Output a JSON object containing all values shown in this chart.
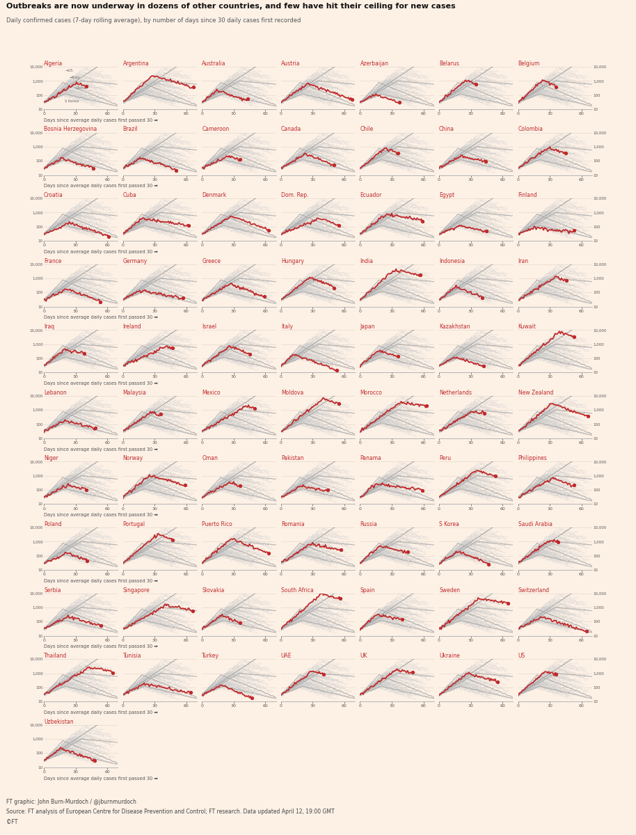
{
  "title": "Outbreaks are now underway in dozens of other countries, and few have hit their ceiling for new cases",
  "subtitle": "Daily confirmed cases (7-day rolling average), by number of days since 30 daily cases first recorded",
  "footer_line1": "FT graphic: John Burn-Murdoch / @jburnmurdoch",
  "footer_line2": "Source: FT analysis of European Centre for Disease Prevention and Control; FT research. Data updated April 12, 19:00 GMT",
  "footer_line3": "©FT",
  "background_color": "#fdf1e6",
  "ref_curve_color": "#bbbbbb",
  "other_country_color": "#cccccc",
  "highlight_color": "#c0292b",
  "title_color": "#111111",
  "country_title_color": "#c0292b",
  "axis_color": "#888888",
  "label_color": "#555555",
  "countries": [
    "Algeria",
    "Argentina",
    "Australia",
    "Austria",
    "Azerbaijan",
    "Belarus",
    "Belgium",
    "Bosnia Herzegovina",
    "Brazil",
    "Cameroon",
    "Canada",
    "Chile",
    "China",
    "Colombia",
    "Croatia",
    "Cuba",
    "Denmark",
    "Dom. Rep.",
    "Ecuador",
    "Egypt",
    "Finland",
    "France",
    "Germany",
    "Greece",
    "Hungary",
    "India",
    "Indonesia",
    "Iran",
    "Iraq",
    "Ireland",
    "Israel",
    "Italy",
    "Japan",
    "Kazakhstan",
    "Kuwait",
    "Lebanon",
    "Malaysia",
    "Mexico",
    "Moldova",
    "Morocco",
    "Netherlands",
    "New Zealand",
    "Niger",
    "Norway",
    "Oman",
    "Pakistan",
    "Panama",
    "Peru",
    "Philippines",
    "Poland",
    "Portugal",
    "Puerto Rico",
    "Romania",
    "Russia",
    "S Korea",
    "Saudi Arabia",
    "Serbia",
    "Singapore",
    "Slovakia",
    "South Africa",
    "Spain",
    "Sweden",
    "Switzerland",
    "Thailand",
    "Tunisia",
    "Turkey",
    "UAE",
    "UK",
    "Ukraine",
    "US",
    "Uzbekistan"
  ],
  "ncols": 7,
  "ylim_log": [
    10,
    10000
  ],
  "xlim": [
    0,
    70
  ],
  "xticks": [
    0,
    30,
    60
  ],
  "yticks_log": [
    10,
    100,
    1000,
    10000
  ],
  "ytick_labels_left": [
    "10",
    "100",
    "1,000",
    "10,000"
  ],
  "ytick_labels_right": [
    "10",
    "100",
    "1,000",
    "10,000"
  ],
  "xlabel": "Days since average daily cases first passed 30 ➡"
}
